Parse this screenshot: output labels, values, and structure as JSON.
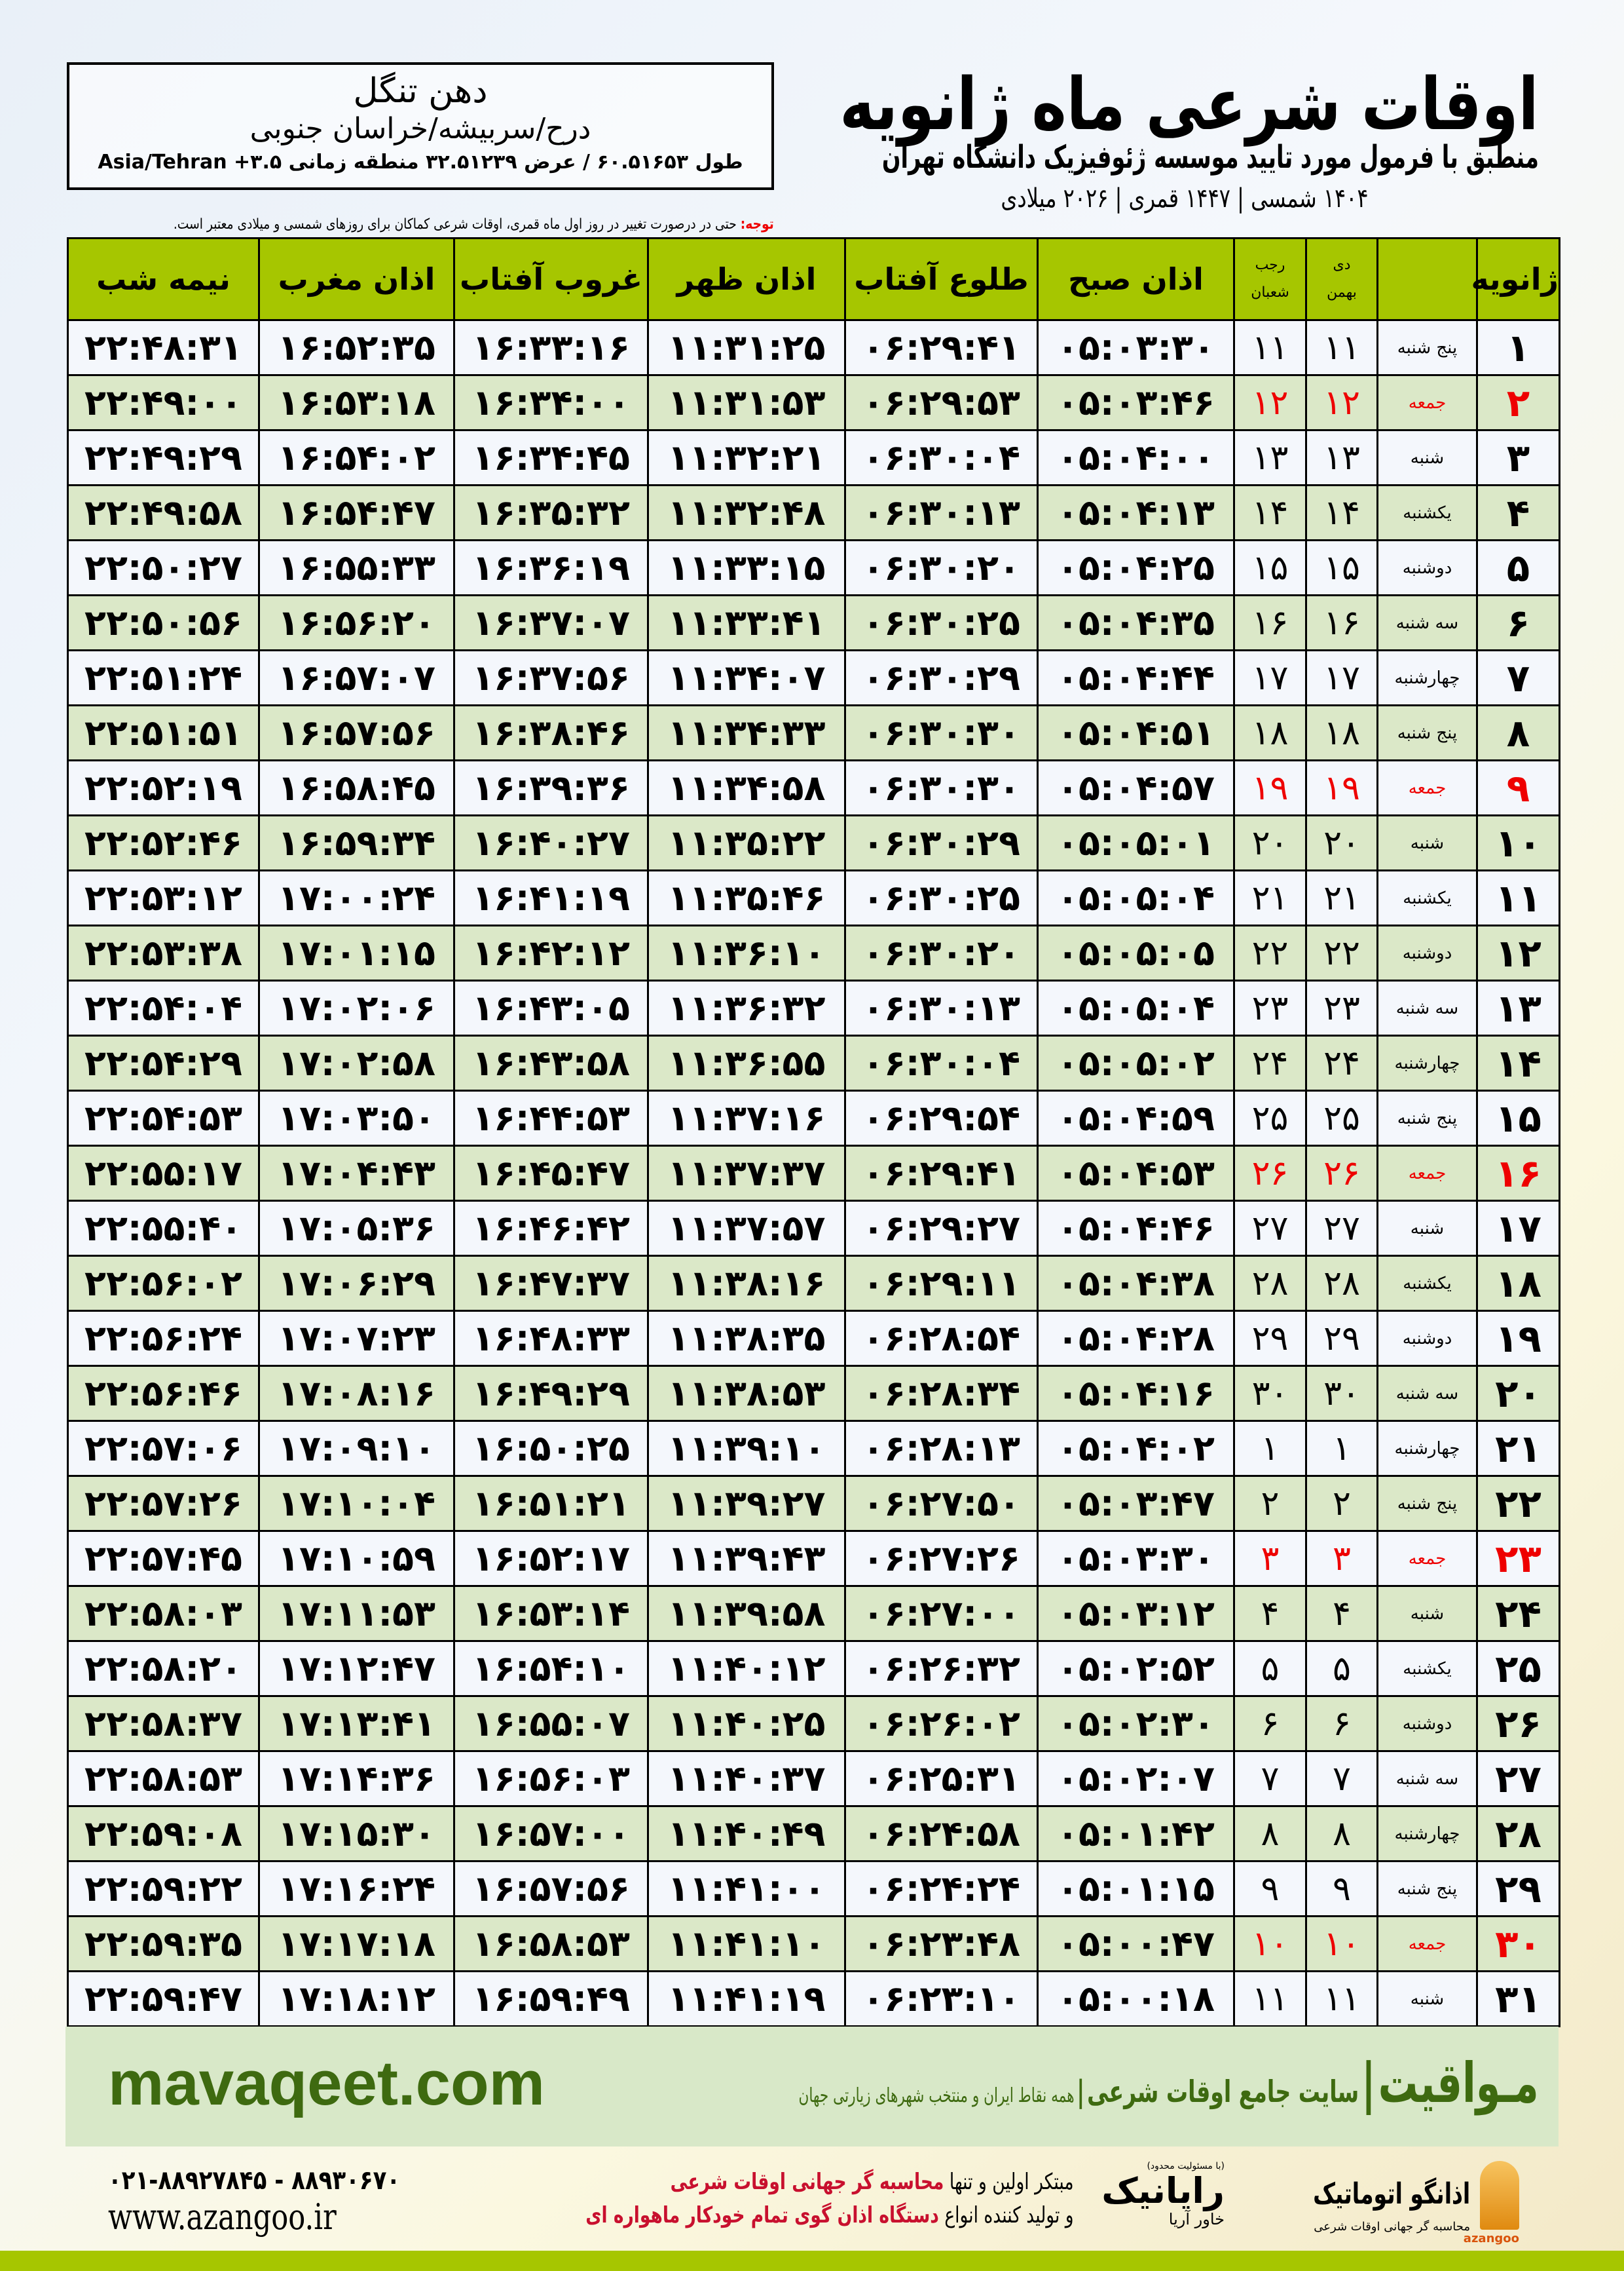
{
  "header": {
    "title": "اوقات شرعی ماه ژانویه",
    "subtitle": "منطبق با فرمول مورد تایید موسسه ژئوفیزیک دانشگاه تهران",
    "dateline": "۱۴۰۴ شمسی | ۱۴۴۷ قمری | ۲۰۲۶ میلادی"
  },
  "location": {
    "name": "دهن تنگل",
    "path": "درح/سربیشه/خراسان جنوبی",
    "coords": "طول ۶۰.۵۱۶۵۳ / عرض ۳۲.۵۱۲۳۹ منطقه زمانی ۳.۵+ Asia/Tehran"
  },
  "note": {
    "label": "توجه:",
    "text": " حتی در درصورت تغییر در روز اول ماه قمری، اوقات شرعی کماکان برای روزهای شمسی و میلادی معتبر است."
  },
  "columns": {
    "day": "ژانویه",
    "shamsi": [
      "دی",
      "بهمن"
    ],
    "qamari": [
      "رجب",
      "شعبان"
    ],
    "sobh": "اذان صبح",
    "tolu": "طلوع آفتاب",
    "zohr": "اذان ظهر",
    "ghorub": "غروب آفتاب",
    "maghreb": "اذان مغرب",
    "nimeshab": "نیمه شب"
  },
  "colors": {
    "header_bg": "#a6c600",
    "row_alt": "#dbe8c8",
    "friday": "#e00000",
    "brand_green": "#3e6a10"
  },
  "rows": [
    {
      "day": "۱",
      "weekday": "پنج شنبه",
      "shamsi": "۱۱",
      "qamari": "۱۱",
      "sobh": "۰۵:۰۳:۳۰",
      "tolu": "۰۶:۲۹:۴۱",
      "zohr": "۱۱:۳۱:۲۵",
      "ghorub": "۱۶:۳۳:۱۶",
      "maghreb": "۱۶:۵۲:۳۵",
      "nimeshab": "۲۲:۴۸:۳۱",
      "holiday": false
    },
    {
      "day": "۲",
      "weekday": "جمعه",
      "shamsi": "۱۲",
      "qamari": "۱۲",
      "sobh": "۰۵:۰۳:۴۶",
      "tolu": "۰۶:۲۹:۵۳",
      "zohr": "۱۱:۳۱:۵۳",
      "ghorub": "۱۶:۳۴:۰۰",
      "maghreb": "۱۶:۵۳:۱۸",
      "nimeshab": "۲۲:۴۹:۰۰",
      "holiday": true
    },
    {
      "day": "۳",
      "weekday": "شنبه",
      "shamsi": "۱۳",
      "qamari": "۱۳",
      "sobh": "۰۵:۰۴:۰۰",
      "tolu": "۰۶:۳۰:۰۴",
      "zohr": "۱۱:۳۲:۲۱",
      "ghorub": "۱۶:۳۴:۴۵",
      "maghreb": "۱۶:۵۴:۰۲",
      "nimeshab": "۲۲:۴۹:۲۹",
      "holiday": false
    },
    {
      "day": "۴",
      "weekday": "یکشنبه",
      "shamsi": "۱۴",
      "qamari": "۱۴",
      "sobh": "۰۵:۰۴:۱۳",
      "tolu": "۰۶:۳۰:۱۳",
      "zohr": "۱۱:۳۲:۴۸",
      "ghorub": "۱۶:۳۵:۳۲",
      "maghreb": "۱۶:۵۴:۴۷",
      "nimeshab": "۲۲:۴۹:۵۸",
      "holiday": false
    },
    {
      "day": "۵",
      "weekday": "دوشنبه",
      "shamsi": "۱۵",
      "qamari": "۱۵",
      "sobh": "۰۵:۰۴:۲۵",
      "tolu": "۰۶:۳۰:۲۰",
      "zohr": "۱۱:۳۳:۱۵",
      "ghorub": "۱۶:۳۶:۱۹",
      "maghreb": "۱۶:۵۵:۳۳",
      "nimeshab": "۲۲:۵۰:۲۷",
      "holiday": false
    },
    {
      "day": "۶",
      "weekday": "سه شنبه",
      "shamsi": "۱۶",
      "qamari": "۱۶",
      "sobh": "۰۵:۰۴:۳۵",
      "tolu": "۰۶:۳۰:۲۵",
      "zohr": "۱۱:۳۳:۴۱",
      "ghorub": "۱۶:۳۷:۰۷",
      "maghreb": "۱۶:۵۶:۲۰",
      "nimeshab": "۲۲:۵۰:۵۶",
      "holiday": false
    },
    {
      "day": "۷",
      "weekday": "چهارشنبه",
      "shamsi": "۱۷",
      "qamari": "۱۷",
      "sobh": "۰۵:۰۴:۴۴",
      "tolu": "۰۶:۳۰:۲۹",
      "zohr": "۱۱:۳۴:۰۷",
      "ghorub": "۱۶:۳۷:۵۶",
      "maghreb": "۱۶:۵۷:۰۷",
      "nimeshab": "۲۲:۵۱:۲۴",
      "holiday": false
    },
    {
      "day": "۸",
      "weekday": "پنج شنبه",
      "shamsi": "۱۸",
      "qamari": "۱۸",
      "sobh": "۰۵:۰۴:۵۱",
      "tolu": "۰۶:۳۰:۳۰",
      "zohr": "۱۱:۳۴:۳۳",
      "ghorub": "۱۶:۳۸:۴۶",
      "maghreb": "۱۶:۵۷:۵۶",
      "nimeshab": "۲۲:۵۱:۵۱",
      "holiday": false
    },
    {
      "day": "۹",
      "weekday": "جمعه",
      "shamsi": "۱۹",
      "qamari": "۱۹",
      "sobh": "۰۵:۰۴:۵۷",
      "tolu": "۰۶:۳۰:۳۰",
      "zohr": "۱۱:۳۴:۵۸",
      "ghorub": "۱۶:۳۹:۳۶",
      "maghreb": "۱۶:۵۸:۴۵",
      "nimeshab": "۲۲:۵۲:۱۹",
      "holiday": true
    },
    {
      "day": "۱۰",
      "weekday": "شنبه",
      "shamsi": "۲۰",
      "qamari": "۲۰",
      "sobh": "۰۵:۰۵:۰۱",
      "tolu": "۰۶:۳۰:۲۹",
      "zohr": "۱۱:۳۵:۲۲",
      "ghorub": "۱۶:۴۰:۲۷",
      "maghreb": "۱۶:۵۹:۳۴",
      "nimeshab": "۲۲:۵۲:۴۶",
      "holiday": false
    },
    {
      "day": "۱۱",
      "weekday": "یکشنبه",
      "shamsi": "۲۱",
      "qamari": "۲۱",
      "sobh": "۰۵:۰۵:۰۴",
      "tolu": "۰۶:۳۰:۲۵",
      "zohr": "۱۱:۳۵:۴۶",
      "ghorub": "۱۶:۴۱:۱۹",
      "maghreb": "۱۷:۰۰:۲۴",
      "nimeshab": "۲۲:۵۳:۱۲",
      "holiday": false
    },
    {
      "day": "۱۲",
      "weekday": "دوشنبه",
      "shamsi": "۲۲",
      "qamari": "۲۲",
      "sobh": "۰۵:۰۵:۰۵",
      "tolu": "۰۶:۳۰:۲۰",
      "zohr": "۱۱:۳۶:۱۰",
      "ghorub": "۱۶:۴۲:۱۲",
      "maghreb": "۱۷:۰۱:۱۵",
      "nimeshab": "۲۲:۵۳:۳۸",
      "holiday": false
    },
    {
      "day": "۱۳",
      "weekday": "سه شنبه",
      "shamsi": "۲۳",
      "qamari": "۲۳",
      "sobh": "۰۵:۰۵:۰۴",
      "tolu": "۰۶:۳۰:۱۳",
      "zohr": "۱۱:۳۶:۳۲",
      "ghorub": "۱۶:۴۳:۰۵",
      "maghreb": "۱۷:۰۲:۰۶",
      "nimeshab": "۲۲:۵۴:۰۴",
      "holiday": false
    },
    {
      "day": "۱۴",
      "weekday": "چهارشنبه",
      "shamsi": "۲۴",
      "qamari": "۲۴",
      "sobh": "۰۵:۰۵:۰۲",
      "tolu": "۰۶:۳۰:۰۴",
      "zohr": "۱۱:۳۶:۵۵",
      "ghorub": "۱۶:۴۳:۵۸",
      "maghreb": "۱۷:۰۲:۵۸",
      "nimeshab": "۲۲:۵۴:۲۹",
      "holiday": false
    },
    {
      "day": "۱۵",
      "weekday": "پنج شنبه",
      "shamsi": "۲۵",
      "qamari": "۲۵",
      "sobh": "۰۵:۰۴:۵۹",
      "tolu": "۰۶:۲۹:۵۴",
      "zohr": "۱۱:۳۷:۱۶",
      "ghorub": "۱۶:۴۴:۵۳",
      "maghreb": "۱۷:۰۳:۵۰",
      "nimeshab": "۲۲:۵۴:۵۳",
      "holiday": false
    },
    {
      "day": "۱۶",
      "weekday": "جمعه",
      "shamsi": "۲۶",
      "qamari": "۲۶",
      "sobh": "۰۵:۰۴:۵۳",
      "tolu": "۰۶:۲۹:۴۱",
      "zohr": "۱۱:۳۷:۳۷",
      "ghorub": "۱۶:۴۵:۴۷",
      "maghreb": "۱۷:۰۴:۴۳",
      "nimeshab": "۲۲:۵۵:۱۷",
      "holiday": true
    },
    {
      "day": "۱۷",
      "weekday": "شنبه",
      "shamsi": "۲۷",
      "qamari": "۲۷",
      "sobh": "۰۵:۰۴:۴۶",
      "tolu": "۰۶:۲۹:۲۷",
      "zohr": "۱۱:۳۷:۵۷",
      "ghorub": "۱۶:۴۶:۴۲",
      "maghreb": "۱۷:۰۵:۳۶",
      "nimeshab": "۲۲:۵۵:۴۰",
      "holiday": false
    },
    {
      "day": "۱۸",
      "weekday": "یکشنبه",
      "shamsi": "۲۸",
      "qamari": "۲۸",
      "sobh": "۰۵:۰۴:۳۸",
      "tolu": "۰۶:۲۹:۱۱",
      "zohr": "۱۱:۳۸:۱۶",
      "ghorub": "۱۶:۴۷:۳۷",
      "maghreb": "۱۷:۰۶:۲۹",
      "nimeshab": "۲۲:۵۶:۰۲",
      "holiday": false
    },
    {
      "day": "۱۹",
      "weekday": "دوشنبه",
      "shamsi": "۲۹",
      "qamari": "۲۹",
      "sobh": "۰۵:۰۴:۲۸",
      "tolu": "۰۶:۲۸:۵۴",
      "zohr": "۱۱:۳۸:۳۵",
      "ghorub": "۱۶:۴۸:۳۳",
      "maghreb": "۱۷:۰۷:۲۳",
      "nimeshab": "۲۲:۵۶:۲۴",
      "holiday": false
    },
    {
      "day": "۲۰",
      "weekday": "سه شنبه",
      "shamsi": "۳۰",
      "qamari": "۳۰",
      "sobh": "۰۵:۰۴:۱۶",
      "tolu": "۰۶:۲۸:۳۴",
      "zohr": "۱۱:۳۸:۵۳",
      "ghorub": "۱۶:۴۹:۲۹",
      "maghreb": "۱۷:۰۸:۱۶",
      "nimeshab": "۲۲:۵۶:۴۶",
      "holiday": false
    },
    {
      "day": "۲۱",
      "weekday": "چهارشنبه",
      "shamsi": "۱",
      "qamari": "۱",
      "sobh": "۰۵:۰۴:۰۲",
      "tolu": "۰۶:۲۸:۱۳",
      "zohr": "۱۱:۳۹:۱۰",
      "ghorub": "۱۶:۵۰:۲۵",
      "maghreb": "۱۷:۰۹:۱۰",
      "nimeshab": "۲۲:۵۷:۰۶",
      "holiday": false
    },
    {
      "day": "۲۲",
      "weekday": "پنج شنبه",
      "shamsi": "۲",
      "qamari": "۲",
      "sobh": "۰۵:۰۳:۴۷",
      "tolu": "۰۶:۲۷:۵۰",
      "zohr": "۱۱:۳۹:۲۷",
      "ghorub": "۱۶:۵۱:۲۱",
      "maghreb": "۱۷:۱۰:۰۴",
      "nimeshab": "۲۲:۵۷:۲۶",
      "holiday": false
    },
    {
      "day": "۲۳",
      "weekday": "جمعه",
      "shamsi": "۳",
      "qamari": "۳",
      "sobh": "۰۵:۰۳:۳۰",
      "tolu": "۰۶:۲۷:۲۶",
      "zohr": "۱۱:۳۹:۴۳",
      "ghorub": "۱۶:۵۲:۱۷",
      "maghreb": "۱۷:۱۰:۵۹",
      "nimeshab": "۲۲:۵۷:۴۵",
      "holiday": true
    },
    {
      "day": "۲۴",
      "weekday": "شنبه",
      "shamsi": "۴",
      "qamari": "۴",
      "sobh": "۰۵:۰۳:۱۲",
      "tolu": "۰۶:۲۷:۰۰",
      "zohr": "۱۱:۳۹:۵۸",
      "ghorub": "۱۶:۵۳:۱۴",
      "maghreb": "۱۷:۱۱:۵۳",
      "nimeshab": "۲۲:۵۸:۰۳",
      "holiday": false
    },
    {
      "day": "۲۵",
      "weekday": "یکشنبه",
      "shamsi": "۵",
      "qamari": "۵",
      "sobh": "۰۵:۰۲:۵۲",
      "tolu": "۰۶:۲۶:۳۲",
      "zohr": "۱۱:۴۰:۱۲",
      "ghorub": "۱۶:۵۴:۱۰",
      "maghreb": "۱۷:۱۲:۴۷",
      "nimeshab": "۲۲:۵۸:۲۰",
      "holiday": false
    },
    {
      "day": "۲۶",
      "weekday": "دوشنبه",
      "shamsi": "۶",
      "qamari": "۶",
      "sobh": "۰۵:۰۲:۳۰",
      "tolu": "۰۶:۲۶:۰۲",
      "zohr": "۱۱:۴۰:۲۵",
      "ghorub": "۱۶:۵۵:۰۷",
      "maghreb": "۱۷:۱۳:۴۱",
      "nimeshab": "۲۲:۵۸:۳۷",
      "holiday": false
    },
    {
      "day": "۲۷",
      "weekday": "سه شنبه",
      "shamsi": "۷",
      "qamari": "۷",
      "sobh": "۰۵:۰۲:۰۷",
      "tolu": "۰۶:۲۵:۳۱",
      "zohr": "۱۱:۴۰:۳۷",
      "ghorub": "۱۶:۵۶:۰۳",
      "maghreb": "۱۷:۱۴:۳۶",
      "nimeshab": "۲۲:۵۸:۵۳",
      "holiday": false
    },
    {
      "day": "۲۸",
      "weekday": "چهارشنبه",
      "shamsi": "۸",
      "qamari": "۸",
      "sobh": "۰۵:۰۱:۴۲",
      "tolu": "۰۶:۲۴:۵۸",
      "zohr": "۱۱:۴۰:۴۹",
      "ghorub": "۱۶:۵۷:۰۰",
      "maghreb": "۱۷:۱۵:۳۰",
      "nimeshab": "۲۲:۵۹:۰۸",
      "holiday": false
    },
    {
      "day": "۲۹",
      "weekday": "پنج شنبه",
      "shamsi": "۹",
      "qamari": "۹",
      "sobh": "۰۵:۰۱:۱۵",
      "tolu": "۰۶:۲۴:۲۴",
      "zohr": "۱۱:۴۱:۰۰",
      "ghorub": "۱۶:۵۷:۵۶",
      "maghreb": "۱۷:۱۶:۲۴",
      "nimeshab": "۲۲:۵۹:۲۲",
      "holiday": false
    },
    {
      "day": "۳۰",
      "weekday": "جمعه",
      "shamsi": "۱۰",
      "qamari": "۱۰",
      "sobh": "۰۵:۰۰:۴۷",
      "tolu": "۰۶:۲۳:۴۸",
      "zohr": "۱۱:۴۱:۱۰",
      "ghorub": "۱۶:۵۸:۵۳",
      "maghreb": "۱۷:۱۷:۱۸",
      "nimeshab": "۲۲:۵۹:۳۵",
      "holiday": true
    },
    {
      "day": "۳۱",
      "weekday": "شنبه",
      "shamsi": "۱۱",
      "qamari": "۱۱",
      "sobh": "۰۵:۰۰:۱۸",
      "tolu": "۰۶:۲۳:۱۰",
      "zohr": "۱۱:۴۱:۱۹",
      "ghorub": "۱۶:۵۹:۴۹",
      "maghreb": "۱۷:۱۸:۱۲",
      "nimeshab": "۲۲:۵۹:۴۷",
      "holiday": false
    }
  ],
  "band": {
    "brand": "مـواقیت",
    "sep": "|",
    "tagline": "سایت جامع اوقات شرعی",
    "sep2": "|",
    "sub": "همه نقاط ایران و منتخب شهرهای زیارتی جهان",
    "site": "mavaqeet.com"
  },
  "footer": {
    "phones": "۰۲۱-۸۸۹۲۷۸۴۵ - ۸۸۹۳۰۶۷۰",
    "web": "www.azangoo.ir",
    "line1_a": "مبتکر اولین و تنها ",
    "line1_b": "محاسبه گر جهانی اوقات شرعی",
    "line2_a": "و تولید کننده انواع ",
    "line2_b": "دستگاه اذان گوی تمام خودکار ماهواره ای",
    "logo1_title": "اذانگو اتوماتیک",
    "logo1_sub": "محاسبه گر جهانی اوقات شرعی",
    "logo1_latin": "azangoo",
    "logo2_title": "رایانیک",
    "logo2_sub": "خاور آریا",
    "logo2_note": "(با مسئولیت محدود)"
  }
}
